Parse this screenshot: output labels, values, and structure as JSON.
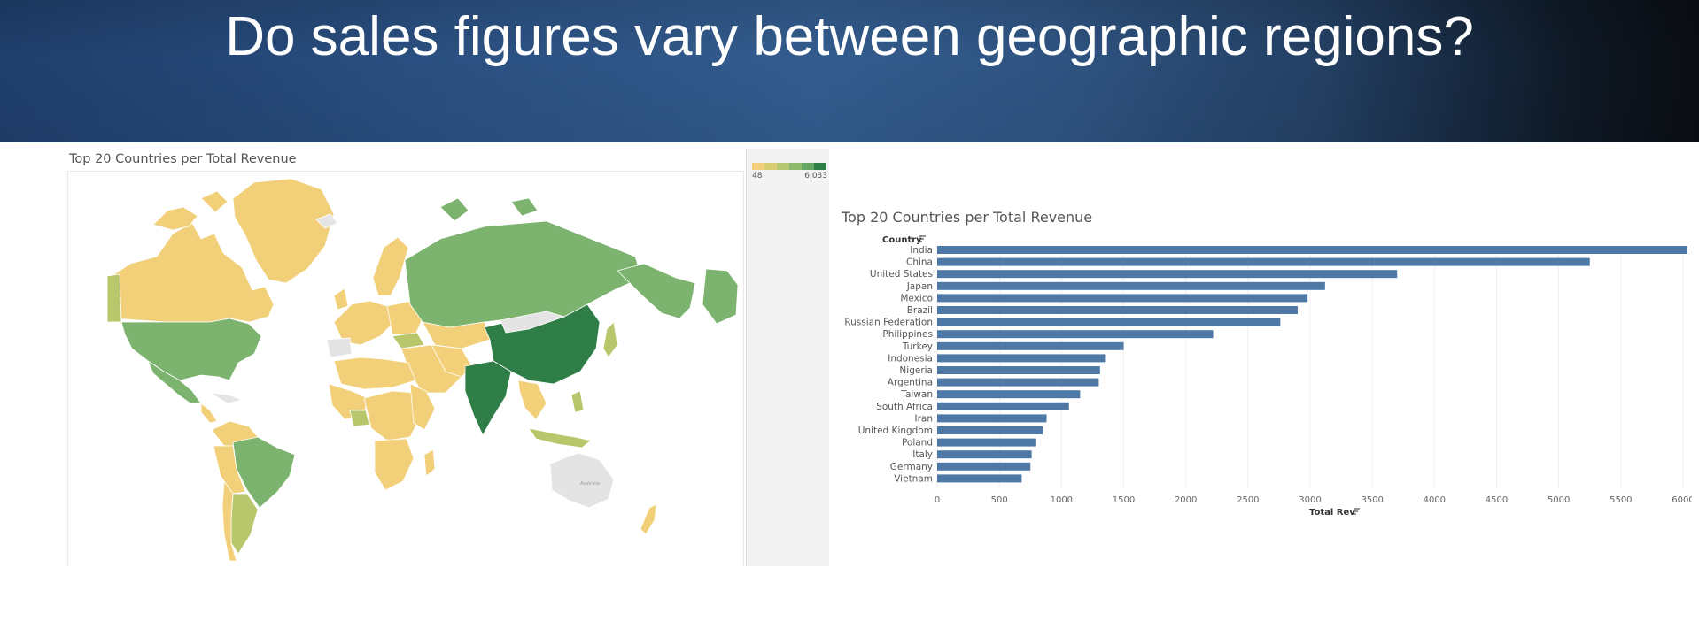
{
  "banner": {
    "title": "Do sales figures vary between geographic regions?"
  },
  "map": {
    "title": "Top 20 Countries per Total Revenue",
    "legend": {
      "min_label": "48",
      "max_label": "6,033",
      "colors": [
        "#f2d07a",
        "#d7cd73",
        "#b7c670",
        "#8fba6e",
        "#64a663",
        "#2f7d47"
      ]
    },
    "fill_colors": {
      "low": "#f2d07a",
      "mid_low": "#b8c76c",
      "mid": "#7cb36e",
      "high": "#2f7d47",
      "none": "#e4e4e4",
      "antarctica": "#e0e0e0"
    },
    "australia_label": "Australia"
  },
  "chart_data": {
    "type": "bar",
    "title": "Top 20 Countries per Total Revenue",
    "orientation": "horizontal",
    "ylabel": "Country",
    "xlabel": "Total Rev",
    "categories": [
      "India",
      "China",
      "United States",
      "Japan",
      "Mexico",
      "Brazil",
      "Russian Federation",
      "Philippines",
      "Turkey",
      "Indonesia",
      "Nigeria",
      "Argentina",
      "Taiwan",
      "South Africa",
      "Iran",
      "United Kingdom",
      "Poland",
      "Italy",
      "Germany",
      "Vietnam"
    ],
    "values": [
      6033,
      5250,
      3700,
      3120,
      2980,
      2900,
      2760,
      2220,
      1500,
      1350,
      1310,
      1300,
      1150,
      1060,
      880,
      850,
      790,
      760,
      750,
      680
    ],
    "xlim": [
      0,
      6000
    ],
    "ticks": [
      "0",
      "500",
      "1000",
      "1500",
      "2000",
      "2500",
      "3000",
      "3500",
      "4000",
      "4500",
      "5000",
      "5500",
      "6000"
    ],
    "bar_color": "#4e79a7",
    "grid": true
  }
}
